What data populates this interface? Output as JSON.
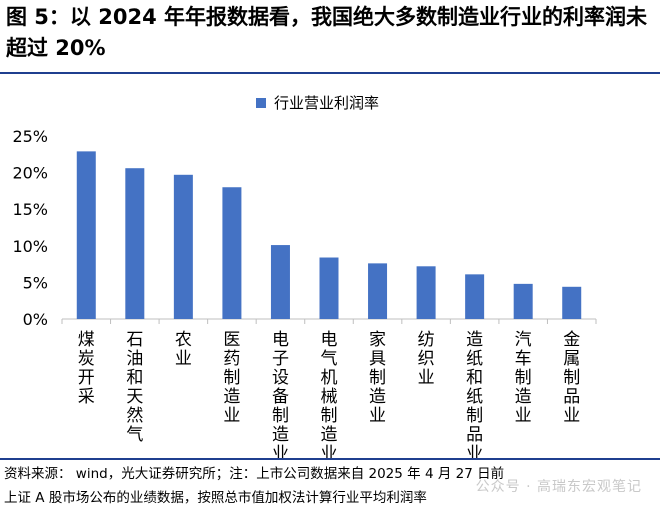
{
  "title": "图 5：以 2024 年年报数据看，我国绝大多数制造业行业的利率润未超过 20%",
  "chart_data": {
    "type": "bar",
    "series": [
      {
        "name": "行业营业利润率",
        "values": [
          22.9,
          20.6,
          19.7,
          18.0,
          10.1,
          8.4,
          7.6,
          7.2,
          6.1,
          4.8,
          4.4
        ]
      }
    ],
    "categories": [
      "煤炭开采",
      "石油和天然气",
      "农业",
      "医药制造业",
      "电子设备制造业",
      "电气机械制造业",
      "家具制造业",
      "纺织业",
      "造纸和纸制品业",
      "汽车制造业",
      "金属制品业"
    ],
    "ylim": [
      0,
      25
    ],
    "yticks": [
      "0%",
      "5%",
      "10%",
      "15%",
      "20%",
      "25%"
    ],
    "color": "#4472c4",
    "legend_position": "top-center",
    "grid": false
  },
  "footer": {
    "line1": "资料来源：  wind，光大证券研究所；注：上市公司数据来自 2025 年 4 月 27 日前",
    "line2": "上证 A 股市场公布的业绩数据，按照总市值加权法计算行业平均利润率"
  },
  "watermark": "公众号 · 高瑞东宏观笔记"
}
